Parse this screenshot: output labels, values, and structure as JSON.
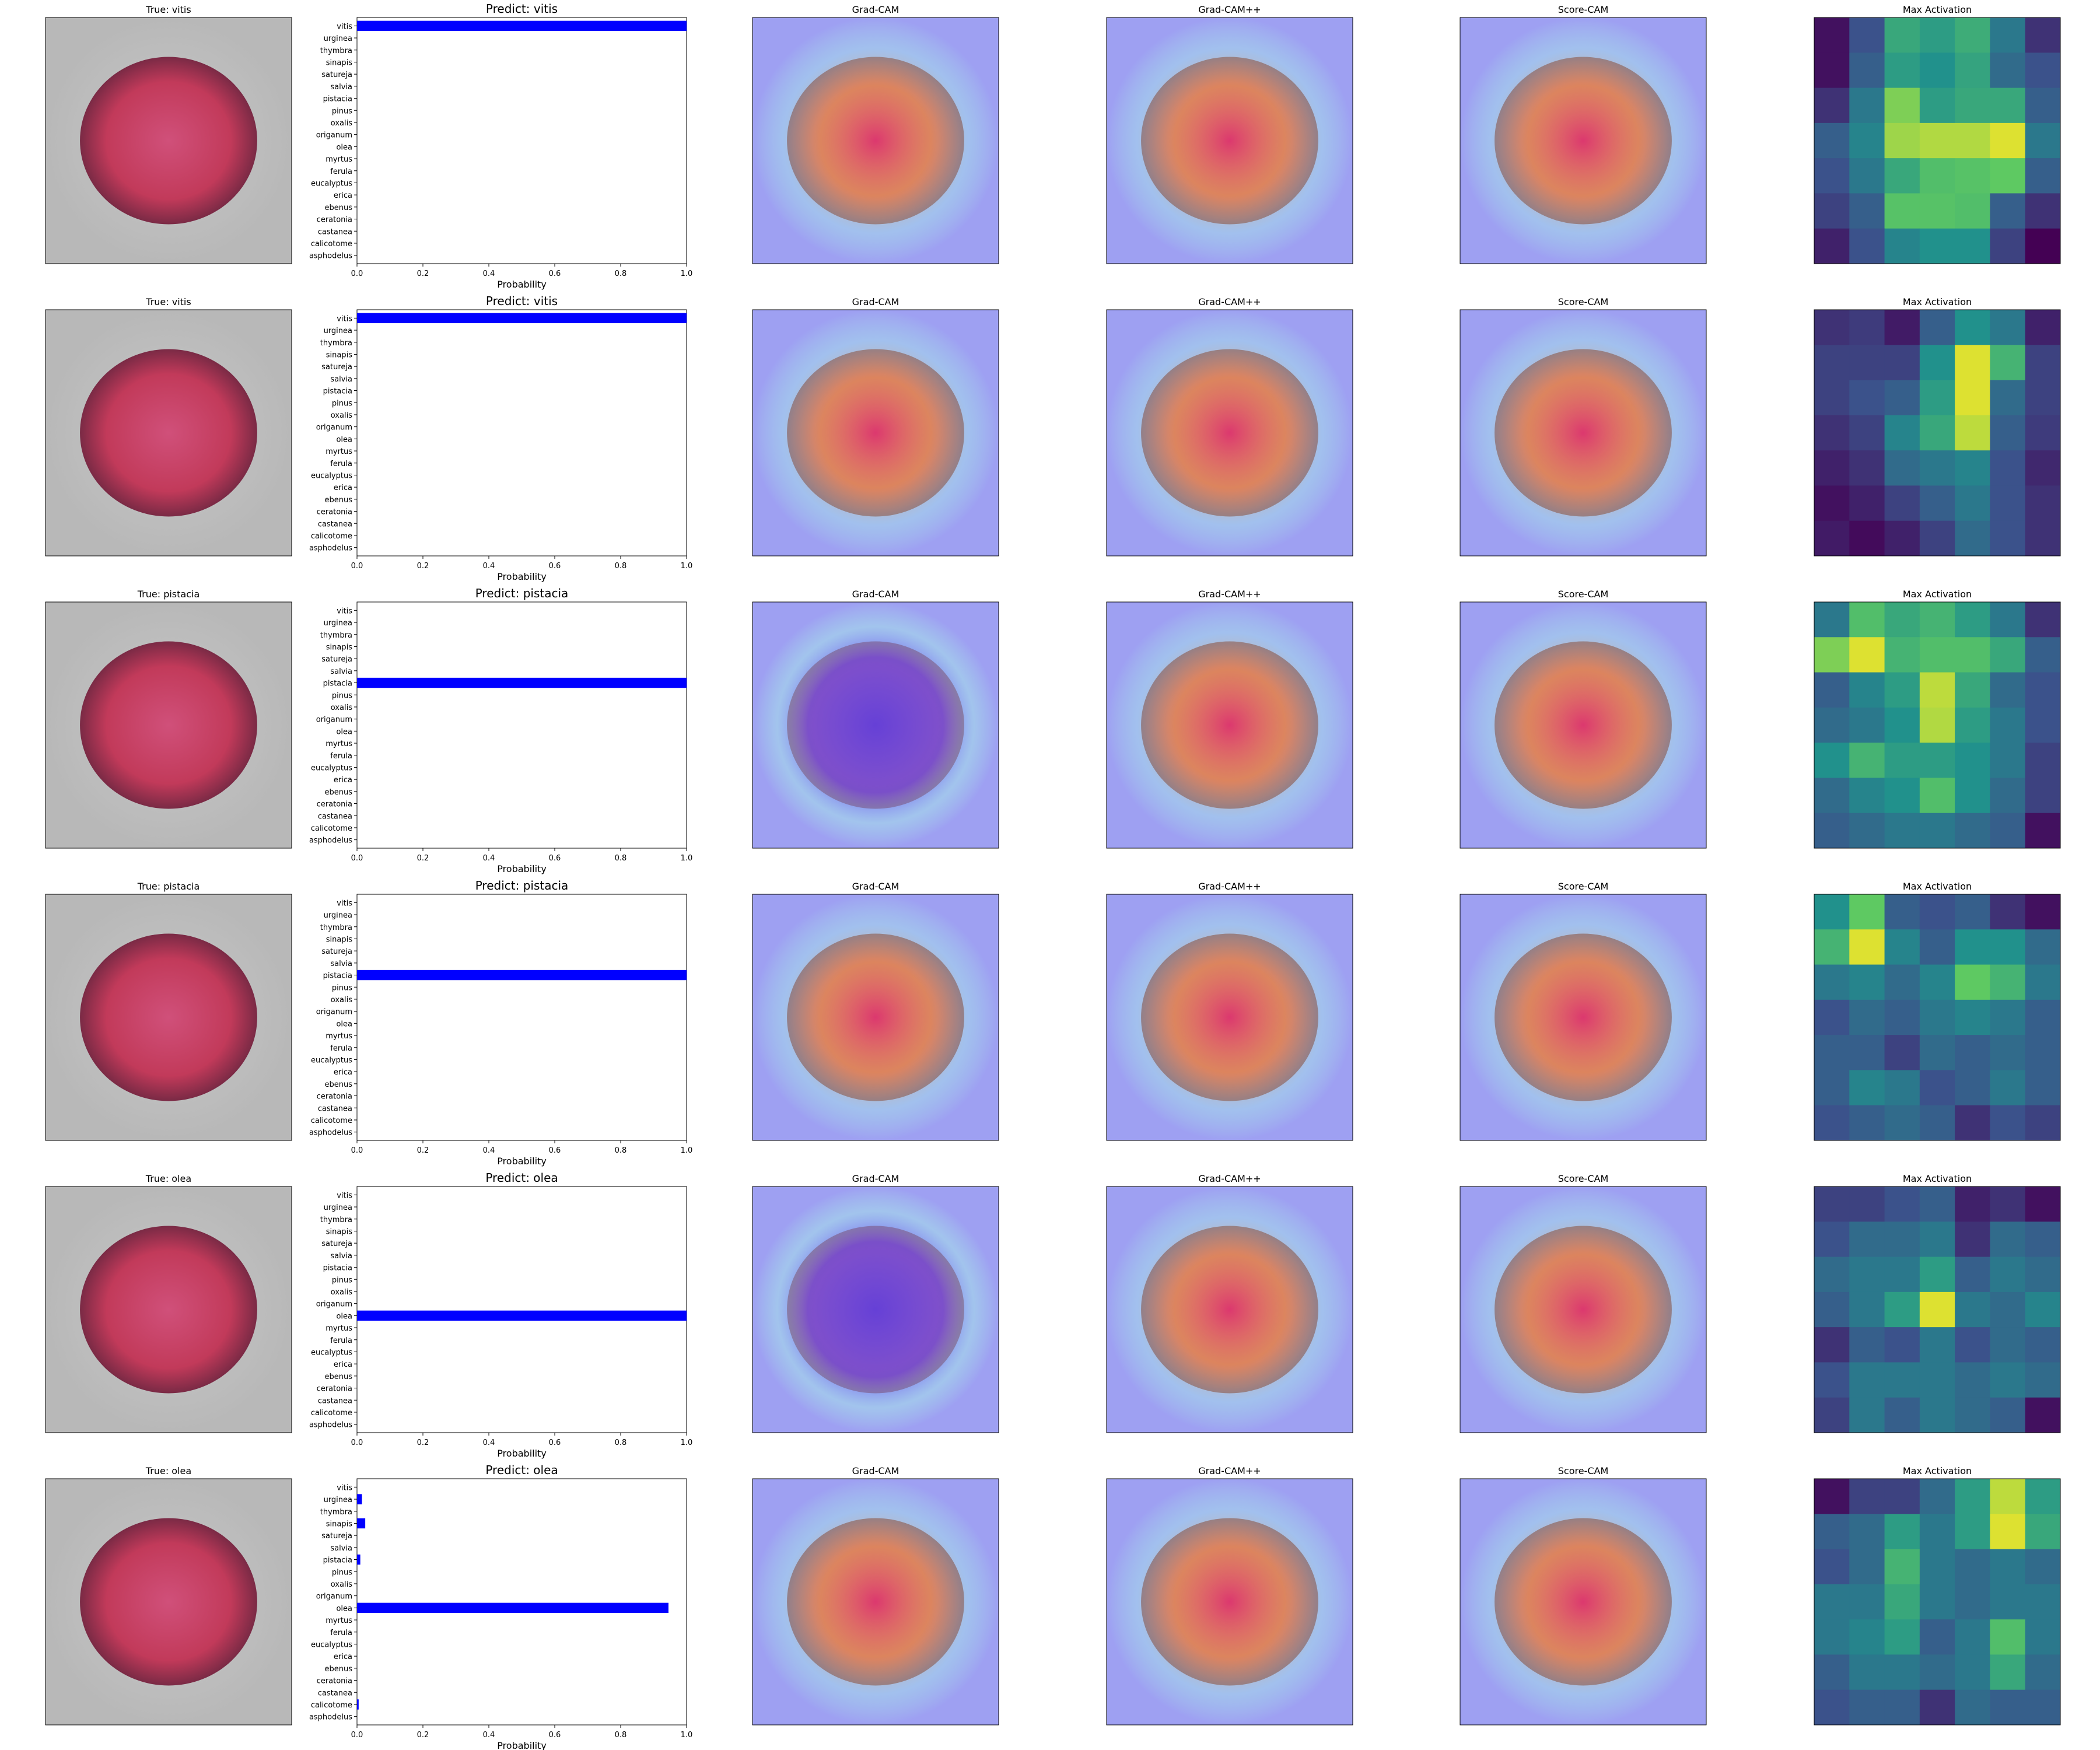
{
  "figure_labels": {
    "gradcam_title": "Grad-CAM",
    "gradcampp_title": "Grad-CAM++",
    "scorecam_title": "Score-CAM",
    "maxact_title": "Max Activation",
    "prob_xlabel": "Probability"
  },
  "colors": {
    "bar": "#0000ff",
    "pollen_main": "#c23a5a",
    "pollen_dark": "#7a2a45",
    "background_gray": "#b8b8b8",
    "cam_overlay_blue": "#9ea0f2",
    "viridis": [
      "#440154",
      "#3b528b",
      "#21918c",
      "#5ec962",
      "#fde725"
    ]
  },
  "chart_data": [
    {
      "type": "bar",
      "orientation": "horizontal",
      "true_label": "True: vitis",
      "title": "Predict: vitis",
      "xlabel": "Probability",
      "categories": [
        "vitis",
        "urginea",
        "thymbra",
        "sinapis",
        "satureja",
        "salvia",
        "pistacia",
        "pinus",
        "oxalis",
        "origanum",
        "olea",
        "myrtus",
        "ferula",
        "eucalyptus",
        "erica",
        "ebenus",
        "ceratonia",
        "castanea",
        "calicotome",
        "asphodelus"
      ],
      "values": [
        1.0,
        0,
        0,
        0,
        0,
        0,
        0,
        0,
        0,
        0,
        0,
        0,
        0,
        0,
        0,
        0,
        0,
        0,
        0,
        0
      ],
      "xlim": [
        0,
        1
      ],
      "xticks": [
        "0.0",
        "0.2",
        "0.4",
        "0.6",
        "0.8",
        "1.0"
      ],
      "max_activation_grid": [
        [
          0.05,
          0.25,
          0.6,
          0.55,
          0.62,
          0.4,
          0.15
        ],
        [
          0.05,
          0.3,
          0.55,
          0.5,
          0.58,
          0.35,
          0.25
        ],
        [
          0.15,
          0.4,
          0.8,
          0.55,
          0.6,
          0.6,
          0.3
        ],
        [
          0.3,
          0.45,
          0.85,
          0.88,
          0.88,
          0.95,
          0.4
        ],
        [
          0.25,
          0.4,
          0.6,
          0.7,
          0.72,
          0.75,
          0.3
        ],
        [
          0.2,
          0.3,
          0.72,
          0.72,
          0.7,
          0.3,
          0.15
        ],
        [
          0.1,
          0.25,
          0.45,
          0.5,
          0.5,
          0.2,
          0.0
        ]
      ]
    },
    {
      "type": "bar",
      "orientation": "horizontal",
      "true_label": "True: vitis",
      "title": "Predict: vitis",
      "xlabel": "Probability",
      "categories": [
        "vitis",
        "urginea",
        "thymbra",
        "sinapis",
        "satureja",
        "salvia",
        "pistacia",
        "pinus",
        "oxalis",
        "origanum",
        "olea",
        "myrtus",
        "ferula",
        "eucalyptus",
        "erica",
        "ebenus",
        "ceratonia",
        "castanea",
        "calicotome",
        "asphodelus"
      ],
      "values": [
        1.0,
        0,
        0,
        0,
        0,
        0,
        0,
        0,
        0,
        0,
        0,
        0,
        0,
        0,
        0,
        0,
        0,
        0,
        0,
        0
      ],
      "xlim": [
        0,
        1
      ],
      "xticks": [
        "0.0",
        "0.2",
        "0.4",
        "0.6",
        "0.8",
        "1.0"
      ],
      "max_activation_grid": [
        [
          0.15,
          0.18,
          0.08,
          0.3,
          0.5,
          0.4,
          0.1
        ],
        [
          0.2,
          0.2,
          0.2,
          0.5,
          0.95,
          0.65,
          0.2
        ],
        [
          0.2,
          0.25,
          0.3,
          0.55,
          0.95,
          0.35,
          0.2
        ],
        [
          0.15,
          0.2,
          0.45,
          0.6,
          0.9,
          0.3,
          0.18
        ],
        [
          0.1,
          0.15,
          0.35,
          0.4,
          0.45,
          0.25,
          0.12
        ],
        [
          0.05,
          0.1,
          0.2,
          0.3,
          0.4,
          0.25,
          0.15
        ],
        [
          0.08,
          0.03,
          0.1,
          0.2,
          0.35,
          0.25,
          0.15
        ]
      ]
    },
    {
      "type": "bar",
      "orientation": "horizontal",
      "true_label": "True: pistacia",
      "title": "Predict: pistacia",
      "xlabel": "Probability",
      "categories": [
        "vitis",
        "urginea",
        "thymbra",
        "sinapis",
        "satureja",
        "salvia",
        "pistacia",
        "pinus",
        "oxalis",
        "origanum",
        "olea",
        "myrtus",
        "ferula",
        "eucalyptus",
        "erica",
        "ebenus",
        "ceratonia",
        "castanea",
        "calicotome",
        "asphodelus"
      ],
      "values": [
        0,
        0,
        0,
        0,
        0,
        0,
        1.0,
        0,
        0,
        0,
        0,
        0,
        0,
        0,
        0,
        0,
        0,
        0,
        0,
        0
      ],
      "xlim": [
        0,
        1
      ],
      "xticks": [
        "0.0",
        "0.2",
        "0.4",
        "0.6",
        "0.8",
        "1.0"
      ],
      "max_activation_grid": [
        [
          0.4,
          0.7,
          0.6,
          0.65,
          0.55,
          0.4,
          0.15
        ],
        [
          0.8,
          0.95,
          0.65,
          0.7,
          0.7,
          0.6,
          0.3
        ],
        [
          0.3,
          0.45,
          0.55,
          0.9,
          0.6,
          0.35,
          0.25
        ],
        [
          0.35,
          0.4,
          0.5,
          0.88,
          0.55,
          0.4,
          0.25
        ],
        [
          0.5,
          0.65,
          0.55,
          0.55,
          0.5,
          0.4,
          0.2
        ],
        [
          0.35,
          0.45,
          0.5,
          0.7,
          0.5,
          0.35,
          0.2
        ],
        [
          0.3,
          0.35,
          0.4,
          0.4,
          0.35,
          0.3,
          0.05
        ]
      ]
    },
    {
      "type": "bar",
      "orientation": "horizontal",
      "true_label": "True: pistacia",
      "title": "Predict: pistacia",
      "xlabel": "Probability",
      "categories": [
        "vitis",
        "urginea",
        "thymbra",
        "sinapis",
        "satureja",
        "salvia",
        "pistacia",
        "pinus",
        "oxalis",
        "origanum",
        "olea",
        "myrtus",
        "ferula",
        "eucalyptus",
        "erica",
        "ebenus",
        "ceratonia",
        "castanea",
        "calicotome",
        "asphodelus"
      ],
      "values": [
        0,
        0,
        0,
        0,
        0,
        0,
        1.0,
        0,
        0,
        0,
        0,
        0,
        0,
        0,
        0,
        0,
        0,
        0,
        0,
        0
      ],
      "xlim": [
        0,
        1
      ],
      "xticks": [
        "0.0",
        "0.2",
        "0.4",
        "0.6",
        "0.8",
        "1.0"
      ],
      "max_activation_grid": [
        [
          0.5,
          0.75,
          0.3,
          0.25,
          0.3,
          0.15,
          0.05
        ],
        [
          0.65,
          0.95,
          0.45,
          0.3,
          0.5,
          0.5,
          0.35
        ],
        [
          0.4,
          0.45,
          0.35,
          0.45,
          0.75,
          0.65,
          0.4
        ],
        [
          0.25,
          0.35,
          0.3,
          0.4,
          0.45,
          0.4,
          0.3
        ],
        [
          0.3,
          0.3,
          0.2,
          0.35,
          0.3,
          0.35,
          0.3
        ],
        [
          0.3,
          0.45,
          0.4,
          0.25,
          0.3,
          0.4,
          0.3
        ],
        [
          0.25,
          0.3,
          0.35,
          0.3,
          0.15,
          0.25,
          0.2
        ]
      ]
    },
    {
      "type": "bar",
      "orientation": "horizontal",
      "true_label": "True: olea",
      "title": "Predict: olea",
      "xlabel": "Probability",
      "categories": [
        "vitis",
        "urginea",
        "thymbra",
        "sinapis",
        "satureja",
        "salvia",
        "pistacia",
        "pinus",
        "oxalis",
        "origanum",
        "olea",
        "myrtus",
        "ferula",
        "eucalyptus",
        "erica",
        "ebenus",
        "ceratonia",
        "castanea",
        "calicotome",
        "asphodelus"
      ],
      "values": [
        0,
        0,
        0,
        0,
        0,
        0,
        0,
        0,
        0,
        0,
        1.0,
        0,
        0,
        0,
        0,
        0,
        0,
        0,
        0,
        0
      ],
      "xlim": [
        0,
        1
      ],
      "xticks": [
        "0.0",
        "0.2",
        "0.4",
        "0.6",
        "0.8",
        "1.0"
      ],
      "max_activation_grid": [
        [
          0.2,
          0.2,
          0.25,
          0.3,
          0.1,
          0.15,
          0.05
        ],
        [
          0.25,
          0.35,
          0.35,
          0.4,
          0.15,
          0.35,
          0.3
        ],
        [
          0.35,
          0.4,
          0.4,
          0.55,
          0.3,
          0.4,
          0.35
        ],
        [
          0.3,
          0.4,
          0.55,
          0.95,
          0.4,
          0.35,
          0.45
        ],
        [
          0.15,
          0.3,
          0.25,
          0.4,
          0.25,
          0.35,
          0.3
        ],
        [
          0.25,
          0.4,
          0.4,
          0.4,
          0.35,
          0.4,
          0.35
        ],
        [
          0.2,
          0.4,
          0.3,
          0.4,
          0.35,
          0.3,
          0.05
        ]
      ]
    },
    {
      "type": "bar",
      "orientation": "horizontal",
      "true_label": "True: olea",
      "title": "Predict: olea",
      "xlabel": "Probability",
      "categories": [
        "vitis",
        "urginea",
        "thymbra",
        "sinapis",
        "satureja",
        "salvia",
        "pistacia",
        "pinus",
        "oxalis",
        "origanum",
        "olea",
        "myrtus",
        "ferula",
        "eucalyptus",
        "erica",
        "ebenus",
        "ceratonia",
        "castanea",
        "calicotome",
        "asphodelus"
      ],
      "values": [
        0,
        0.015,
        0,
        0.025,
        0,
        0,
        0.01,
        0,
        0,
        0,
        0.945,
        0,
        0,
        0,
        0,
        0,
        0,
        0,
        0.005,
        0
      ],
      "xlim": [
        0,
        1
      ],
      "xticks": [
        "0.0",
        "0.2",
        "0.4",
        "0.6",
        "0.8",
        "1.0"
      ],
      "max_activation_grid": [
        [
          0.05,
          0.2,
          0.2,
          0.35,
          0.55,
          0.9,
          0.55
        ],
        [
          0.3,
          0.35,
          0.55,
          0.4,
          0.55,
          0.95,
          0.6
        ],
        [
          0.25,
          0.35,
          0.65,
          0.4,
          0.35,
          0.4,
          0.35
        ],
        [
          0.4,
          0.4,
          0.6,
          0.4,
          0.35,
          0.4,
          0.4
        ],
        [
          0.4,
          0.45,
          0.55,
          0.3,
          0.4,
          0.7,
          0.4
        ],
        [
          0.3,
          0.4,
          0.4,
          0.35,
          0.4,
          0.6,
          0.35
        ],
        [
          0.25,
          0.3,
          0.3,
          0.15,
          0.35,
          0.3,
          0.3
        ]
      ]
    }
  ]
}
